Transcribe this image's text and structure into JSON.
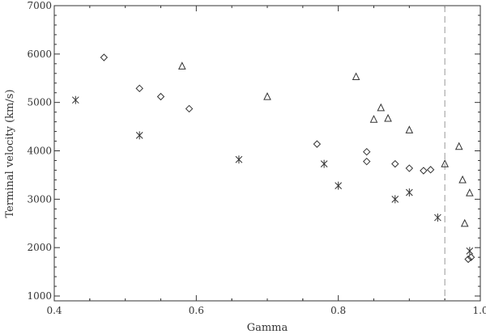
{
  "chart_data": {
    "type": "scatter",
    "xlabel": "Gamma",
    "ylabel": "Terminal velocity (km/s)",
    "xlim": [
      0.4,
      1.0
    ],
    "ylim": [
      900,
      7000
    ],
    "xticks": [
      0.4,
      0.6,
      0.8,
      1.0
    ],
    "xtick_labels": [
      "0.4",
      "0.6",
      "0.8",
      "1.0"
    ],
    "yticks": [
      1000,
      2000,
      3000,
      4000,
      5000,
      6000,
      7000
    ],
    "ytick_labels": [
      "1000",
      "2000",
      "3000",
      "4000",
      "5000",
      "6000",
      "7000"
    ],
    "grid": false,
    "reference_line": {
      "axis": "x",
      "value": 0.95,
      "style": "dashed",
      "color": "#999999"
    },
    "series": [
      {
        "marker": "asterisk",
        "points": [
          [
            0.43,
            5050
          ],
          [
            0.52,
            4320
          ],
          [
            0.66,
            3820
          ],
          [
            0.78,
            3730
          ],
          [
            0.8,
            3280
          ],
          [
            0.88,
            3000
          ],
          [
            0.9,
            3140
          ],
          [
            0.94,
            2620
          ],
          [
            0.985,
            1930
          ]
        ]
      },
      {
        "marker": "diamond",
        "points": [
          [
            0.47,
            5930
          ],
          [
            0.52,
            5290
          ],
          [
            0.55,
            5120
          ],
          [
            0.59,
            4870
          ],
          [
            0.77,
            4140
          ],
          [
            0.84,
            3980
          ],
          [
            0.84,
            3780
          ],
          [
            0.88,
            3730
          ],
          [
            0.9,
            3640
          ],
          [
            0.92,
            3590
          ],
          [
            0.93,
            3610
          ],
          [
            0.983,
            1760
          ],
          [
            0.987,
            1800
          ]
        ]
      },
      {
        "marker": "triangle",
        "points": [
          [
            0.58,
            5740
          ],
          [
            0.7,
            5110
          ],
          [
            0.825,
            5520
          ],
          [
            0.86,
            4880
          ],
          [
            0.85,
            4640
          ],
          [
            0.87,
            4660
          ],
          [
            0.9,
            4420
          ],
          [
            0.95,
            3720
          ],
          [
            0.97,
            4080
          ],
          [
            0.975,
            3390
          ],
          [
            0.985,
            3120
          ],
          [
            0.978,
            2490
          ]
        ]
      }
    ]
  }
}
